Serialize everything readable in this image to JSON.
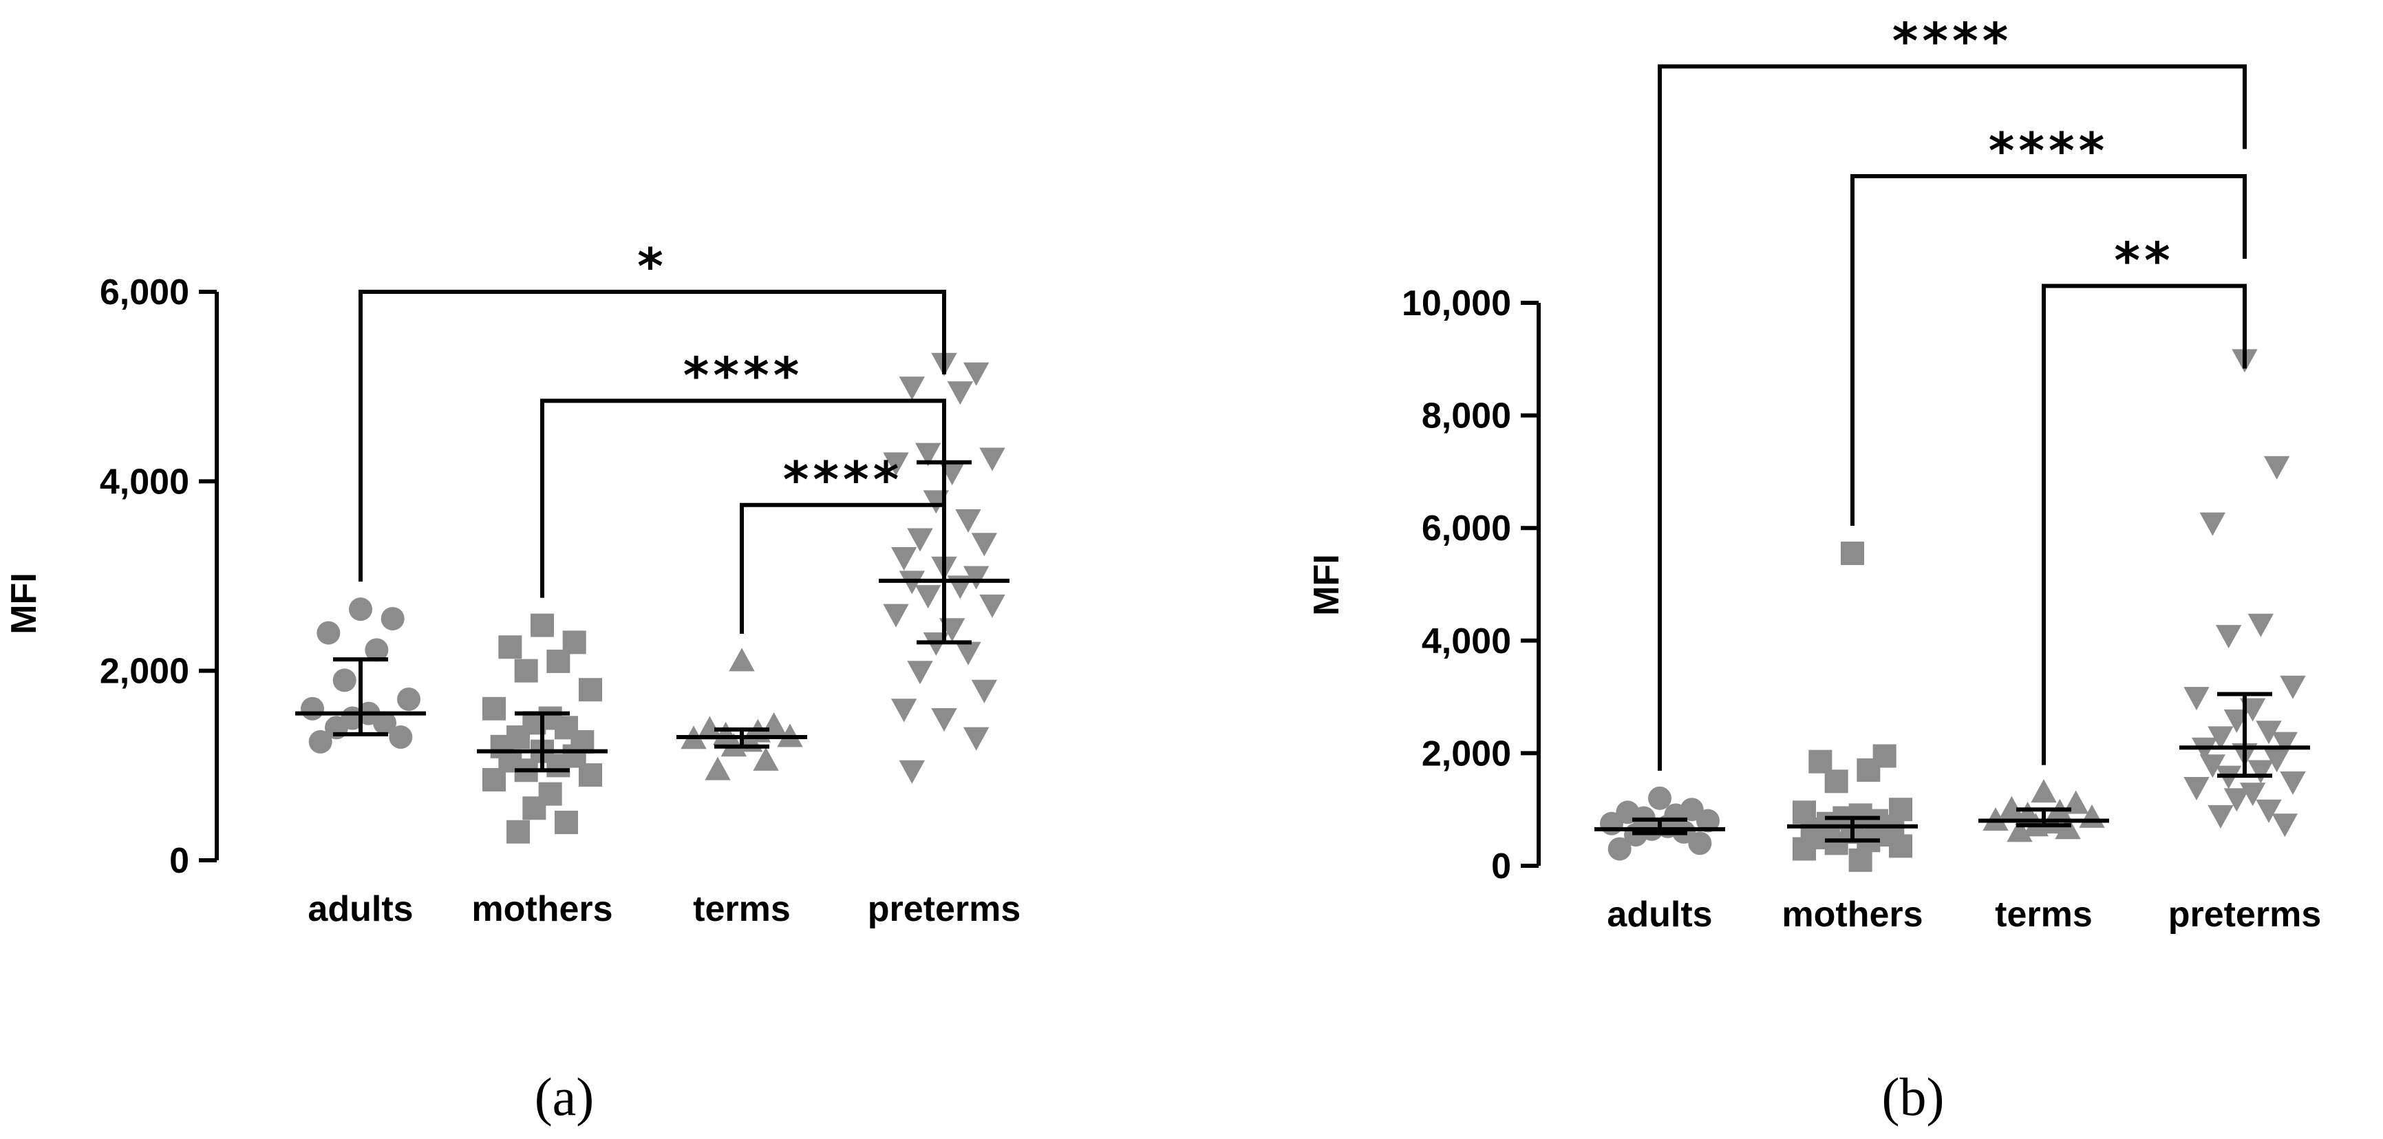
{
  "chart_data": [
    {
      "type": "scatter",
      "panel_label": "(a)",
      "title": "",
      "xlabel": "",
      "ylabel": "MFI",
      "ylim": [
        0,
        6000
      ],
      "yticks": [
        0,
        2000,
        4000,
        6000
      ],
      "ytick_labels": [
        "0",
        "2,000",
        "4,000",
        "6,000"
      ],
      "categories": [
        "adults",
        "mothers",
        "terms",
        "preterms"
      ],
      "point_color": "#8c8c8c",
      "markers": [
        "circle",
        "square",
        "triangle-up",
        "triangle-down"
      ],
      "series": [
        {
          "category": "adults",
          "median": 1550,
          "iqr": [
            1330,
            2120
          ],
          "values": [
            2650,
            2550,
            2400,
            2220,
            1900,
            1700,
            1600,
            1550,
            1500,
            1450,
            1400,
            1300,
            1250
          ]
        },
        {
          "category": "mothers",
          "median": 1150,
          "iqr": [
            950,
            1550
          ],
          "values": [
            2480,
            2300,
            2250,
            2100,
            2000,
            1800,
            1600,
            1500,
            1450,
            1400,
            1300,
            1250,
            1200,
            1150,
            1100,
            1050,
            1000,
            950,
            900,
            850,
            700,
            550,
            400,
            300
          ]
        },
        {
          "category": "terms",
          "median": 1300,
          "iqr": [
            1200,
            1380
          ],
          "values": [
            2100,
            1420,
            1380,
            1350,
            1320,
            1300,
            1280,
            1250,
            1200,
            1050,
            950
          ]
        },
        {
          "category": "preterms",
          "median": 2950,
          "iqr": [
            2300,
            4200
          ],
          "values": [
            5250,
            5150,
            5000,
            4950,
            4300,
            4250,
            4200,
            4100,
            3800,
            3600,
            3400,
            3350,
            3200,
            3100,
            3000,
            2950,
            2900,
            2800,
            2700,
            2600,
            2450,
            2300,
            2200,
            2000,
            1800,
            1600,
            1500,
            1300,
            950
          ]
        }
      ],
      "comparisons": [
        {
          "from": "adults",
          "to": "preterms",
          "label": "*",
          "level": 6000
        },
        {
          "from": "mothers",
          "to": "preterms",
          "label": "****",
          "level": 4850
        },
        {
          "from": "terms",
          "to": "preterms",
          "label": "****",
          "level": 3750
        }
      ]
    },
    {
      "type": "scatter",
      "panel_label": "(b)",
      "title": "",
      "xlabel": "",
      "ylabel": "MFI",
      "ylim": [
        0,
        10000
      ],
      "yticks": [
        0,
        2000,
        4000,
        6000,
        8000,
        10000
      ],
      "ytick_labels": [
        "0",
        "2,000",
        "4,000",
        "6,000",
        "8,000",
        "10,000"
      ],
      "categories": [
        "adults",
        "mothers",
        "terms",
        "preterms"
      ],
      "point_color": "#8c8c8c",
      "markers": [
        "circle",
        "square",
        "triangle-up",
        "triangle-down"
      ],
      "series": [
        {
          "category": "adults",
          "median": 650,
          "iqr": [
            580,
            820
          ],
          "values": [
            1200,
            1000,
            950,
            900,
            850,
            800,
            750,
            700,
            650,
            600,
            550,
            400,
            300
          ]
        },
        {
          "category": "mothers",
          "median": 700,
          "iqr": [
            450,
            850
          ],
          "values": [
            5550,
            1950,
            1850,
            1700,
            1500,
            1000,
            950,
            900,
            850,
            800,
            750,
            700,
            650,
            600,
            550,
            500,
            450,
            400,
            350,
            300,
            100
          ]
        },
        {
          "category": "terms",
          "median": 800,
          "iqr": [
            720,
            1000
          ],
          "values": [
            1300,
            1100,
            1000,
            950,
            900,
            850,
            800,
            750,
            700,
            650,
            600
          ]
        },
        {
          "category": "preterms",
          "median": 2100,
          "iqr": [
            1600,
            3050
          ],
          "values": [
            9000,
            7100,
            6100,
            4300,
            4100,
            3200,
            3000,
            2800,
            2600,
            2400,
            2300,
            2200,
            2100,
            2000,
            1900,
            1800,
            1700,
            1600,
            1500,
            1400,
            1300,
            1200,
            1000,
            900,
            750
          ]
        }
      ],
      "comparisons": [
        {
          "from": "adults",
          "to": "preterms",
          "label": "****",
          "level": 14200
        },
        {
          "from": "mothers",
          "to": "preterms",
          "label": "****",
          "level": 12250
        },
        {
          "from": "terms",
          "to": "preterms",
          "label": "**",
          "level": 10300
        }
      ]
    }
  ]
}
